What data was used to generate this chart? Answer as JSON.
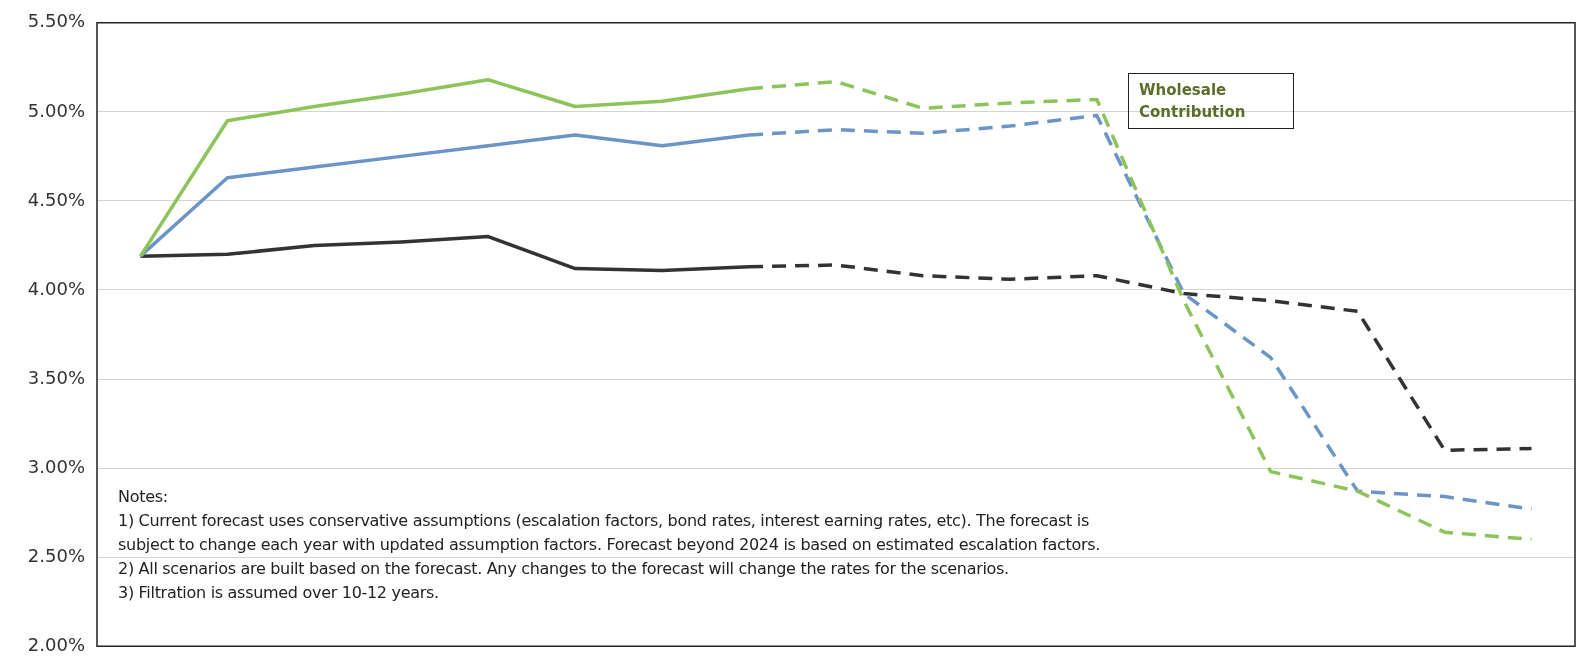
{
  "chart_data": {
    "type": "line",
    "categories": [
      null,
      null,
      null,
      null,
      null,
      null,
      null,
      null,
      null,
      null,
      null,
      null,
      null,
      null,
      null,
      null,
      null
    ],
    "series": [
      {
        "color": "#8dc45a",
        "line_style": "solid",
        "values": [
          4.19,
          4.95,
          5.03,
          5.1,
          5.18,
          5.03,
          5.06,
          5.13,
          null,
          null,
          null,
          null,
          null,
          null,
          null,
          null,
          null
        ]
      },
      {
        "color": "#8dc45a",
        "line_style": "dashed",
        "values": [
          null,
          null,
          null,
          null,
          null,
          null,
          null,
          5.13,
          5.17,
          5.02,
          5.05,
          5.07,
          3.94,
          2.98,
          2.87,
          2.64,
          2.6
        ]
      },
      {
        "color": "#6b95c8",
        "line_style": "solid",
        "values": [
          4.19,
          4.63,
          4.69,
          4.75,
          4.81,
          4.87,
          4.81,
          4.87,
          null,
          null,
          null,
          null,
          null,
          null,
          null,
          null,
          null
        ]
      },
      {
        "color": "#6b95c8",
        "line_style": "dashed",
        "values": [
          null,
          null,
          null,
          null,
          null,
          null,
          null,
          4.87,
          4.9,
          4.88,
          4.92,
          4.98,
          3.98,
          3.62,
          2.87,
          2.84,
          2.77
        ]
      },
      {
        "color": "#333333",
        "line_style": "solid",
        "values": [
          4.19,
          4.2,
          4.25,
          4.27,
          4.3,
          4.12,
          4.11,
          4.13,
          null,
          null,
          null,
          null,
          null,
          null,
          null,
          null,
          null
        ]
      },
      {
        "color": "#333333",
        "line_style": "dashed",
        "values": [
          null,
          null,
          null,
          null,
          null,
          null,
          null,
          4.13,
          4.14,
          4.08,
          4.06,
          4.08,
          3.98,
          3.94,
          3.88,
          3.1,
          3.11
        ]
      }
    ],
    "ylim": [
      2,
      5.5
    ],
    "yticks": [
      {
        "value": 2,
        "label": "2.00%"
      },
      {
        "value": 2.5,
        "label": "2.50%"
      },
      {
        "value": 3,
        "label": "3.00%"
      },
      {
        "value": 3.5,
        "label": "3.50%"
      },
      {
        "value": 4,
        "label": "4.00%"
      },
      {
        "value": 4.5,
        "label": "4.50%"
      },
      {
        "value": 5,
        "label": "5.00%"
      },
      {
        "value": 5.5,
        "label": "5.50%"
      }
    ],
    "grid": "y",
    "legend": false,
    "marker": "none",
    "tick_labels": "y",
    "annotations": [
      "Wholesale Contribution",
      "Notes:",
      "1)  Current forecast uses conservative assumptions (escalation factors, bond rates,  interest earning rates, etc).  The forecast is",
      "subject to change each year with updated assumption factors.  Forecast beyond 2024 is based on estimated escalation factors.",
      "2)  All scenarios are built based on the forecast.  Any changes to the forecast will change the rates for the scenarios.",
      "3)  Filtration is assumed over 10-12 years."
    ]
  }
}
